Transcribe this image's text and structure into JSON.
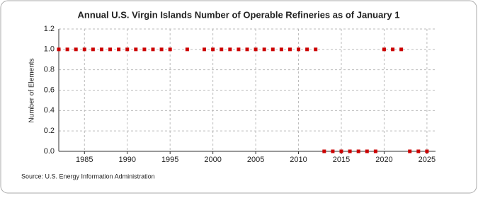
{
  "chart_data": {
    "type": "scatter",
    "title": "Annual U.S. Virgin Islands Number of Operable Refineries as of January 1",
    "y_label": "Number of Elements",
    "source": "Source: U.S. Energy Information Administration",
    "x": [
      1982,
      1983,
      1984,
      1985,
      1986,
      1987,
      1988,
      1989,
      1990,
      1991,
      1992,
      1993,
      1994,
      1995,
      1997,
      1999,
      2000,
      2001,
      2002,
      2003,
      2004,
      2005,
      2006,
      2007,
      2008,
      2009,
      2010,
      2011,
      2012,
      2013,
      2014,
      2015,
      2016,
      2017,
      2018,
      2019,
      2020,
      2021,
      2022,
      2023,
      2024,
      2025
    ],
    "values": [
      1,
      1,
      1,
      1,
      1,
      1,
      1,
      1,
      1,
      1,
      1,
      1,
      1,
      1,
      1,
      1,
      1,
      1,
      1,
      1,
      1,
      1,
      1,
      1,
      1,
      1,
      1,
      1,
      1,
      0,
      0,
      0,
      0,
      0,
      0,
      0,
      1,
      1,
      1,
      0,
      0,
      0
    ],
    "color": "#cc0000",
    "xlim": [
      1982,
      2026
    ],
    "xticks": [
      1985,
      1990,
      1995,
      2000,
      2005,
      2010,
      2015,
      2020,
      2025
    ],
    "ylim": [
      0,
      1.2
    ],
    "yticks": [
      {
        "value": 0,
        "label": "0.0"
      },
      {
        "value": 0.2,
        "label": "0.2"
      },
      {
        "value": 0.4,
        "label": "0.4"
      },
      {
        "value": 0.6,
        "label": "0.6"
      },
      {
        "value": 0.8,
        "label": "0.8"
      },
      {
        "value": 1,
        "label": "1.0"
      },
      {
        "value": 1.2,
        "label": "1.2"
      }
    ],
    "grid": true
  }
}
